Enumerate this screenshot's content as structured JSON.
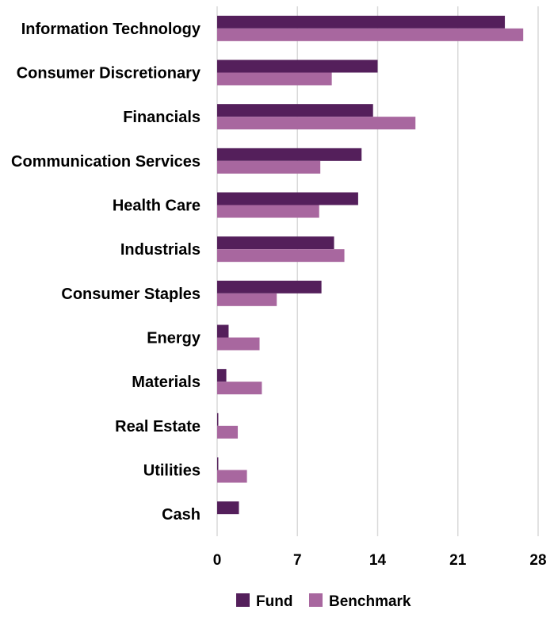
{
  "chart_data": {
    "type": "bar",
    "orientation": "horizontal",
    "categories": [
      "Information Technology",
      "Consumer Discretionary",
      "Financials",
      "Communication Services",
      "Health Care",
      "Industrials",
      "Consumer Staples",
      "Energy",
      "Materials",
      "Real Estate",
      "Utilities",
      "Cash"
    ],
    "series": [
      {
        "name": "Fund",
        "color": "#541f5b",
        "values": [
          25.1,
          14.0,
          13.6,
          12.6,
          12.3,
          10.2,
          9.1,
          1.0,
          0.8,
          0.1,
          0.1,
          1.9
        ]
      },
      {
        "name": "Benchmark",
        "color": "#a8679f",
        "values": [
          26.7,
          10.0,
          17.3,
          9.0,
          8.9,
          11.1,
          5.2,
          3.7,
          3.9,
          1.8,
          2.6,
          0.0
        ]
      }
    ],
    "x_ticks": [
      "0",
      "7",
      "14",
      "21",
      "28"
    ],
    "xlim": [
      0,
      28
    ],
    "grid": true,
    "legend_position": "bottom"
  }
}
